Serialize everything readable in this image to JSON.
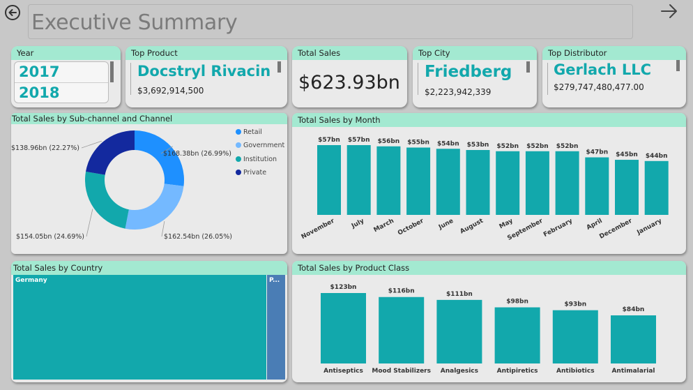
{
  "header": {
    "title": "Executive Summary",
    "back_icon": "back-arrow-circle-icon",
    "forward_icon": "forward-arrow-icon"
  },
  "year_slicer": {
    "label": "Year",
    "options": [
      "2017",
      "2018"
    ]
  },
  "top_product": {
    "label": "Top Product",
    "name": "Docstryl Rivacin",
    "value": "$3,692,914,500"
  },
  "total_sales": {
    "label": "Total Sales",
    "value": "$623.93bn"
  },
  "top_city": {
    "label": "Top City",
    "name": "Friedberg",
    "value": "$2,223,942,339"
  },
  "top_distributor": {
    "label": "Top Distributor",
    "name": "Gerlach LLC",
    "value": "$279,747,480,477.00"
  },
  "colors": {
    "teal": "#12a8ac",
    "header_mint": "#a3e9d1",
    "retail": "#1e90ff",
    "government": "#74b9ff",
    "institution": "#12a8ac",
    "private": "#13299e",
    "treemap_other": "#4a7db5"
  },
  "chart_data": [
    {
      "type": "pie",
      "title": "Total Sales by Sub-channel and Channel",
      "donut": true,
      "categories": [
        "Retail",
        "Government",
        "Institution",
        "Private"
      ],
      "values": [
        168.38,
        162.54,
        154.05,
        138.96
      ],
      "labels": [
        "$168.38bn (26.99%)",
        "$162.54bn (26.05%)",
        "$154.05bn (24.69%)",
        "$138.96bn (22.27%)"
      ],
      "legend": [
        "Retail",
        "Government",
        "Institution",
        "Private"
      ],
      "legend_position": "top-right"
    },
    {
      "type": "bar",
      "title": "Total Sales by Month",
      "categories": [
        "November",
        "July",
        "March",
        "October",
        "June",
        "August",
        "May",
        "September",
        "February",
        "April",
        "December",
        "January"
      ],
      "values": [
        57,
        57,
        56,
        55,
        54,
        53,
        52,
        52,
        52,
        47,
        45,
        44
      ],
      "labels": [
        "$57bn",
        "$57bn",
        "$56bn",
        "$55bn",
        "$54bn",
        "$53bn",
        "$52bn",
        "$52bn",
        "$52bn",
        "$47bn",
        "$45bn",
        "$44bn"
      ],
      "ylim": [
        0,
        60
      ]
    },
    {
      "type": "treemap",
      "title": "Total Sales by Country",
      "categories": [
        "Germany",
        "P..."
      ],
      "values": [
        581,
        42.93
      ]
    },
    {
      "type": "bar",
      "title": "Total Sales by Product Class",
      "categories": [
        "Antiseptics",
        "Mood Stabilizers",
        "Analgesics",
        "Antipiretics",
        "Antibiotics",
        "Antimalarial"
      ],
      "values": [
        123,
        116,
        111,
        98,
        93,
        84
      ],
      "labels": [
        "$123bn",
        "$116bn",
        "$111bn",
        "$98bn",
        "$93bn",
        "$84bn"
      ],
      "ylim": [
        0,
        130
      ]
    }
  ]
}
